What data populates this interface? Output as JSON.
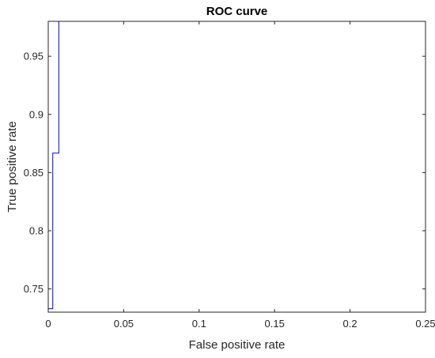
{
  "chart_data": {
    "type": "line",
    "title": "ROC curve",
    "xlabel": "False positive rate",
    "ylabel": "True positive rate",
    "xlim": [
      0,
      0.25
    ],
    "ylim": [
      0.73,
      0.98
    ],
    "xticks": [
      0,
      0.05,
      0.1,
      0.15,
      0.2,
      0.25
    ],
    "xtick_labels": [
      "0",
      "0.05",
      "0.1",
      "0.15",
      "0.2",
      "0.25"
    ],
    "yticks": [
      0.75,
      0.8,
      0.85,
      0.9,
      0.95
    ],
    "ytick_labels": [
      "0.75",
      "0.8",
      "0.85",
      "0.9",
      "0.95"
    ],
    "grid": false,
    "box": true,
    "series": [
      {
        "color": "#0000ff",
        "x": [
          0,
          0.003,
          0.003,
          0.004,
          0.004,
          0.007,
          0.007
        ],
        "y": [
          0.733,
          0.733,
          0.8667,
          0.8667,
          0.8667,
          0.8667,
          0.98
        ]
      }
    ]
  }
}
